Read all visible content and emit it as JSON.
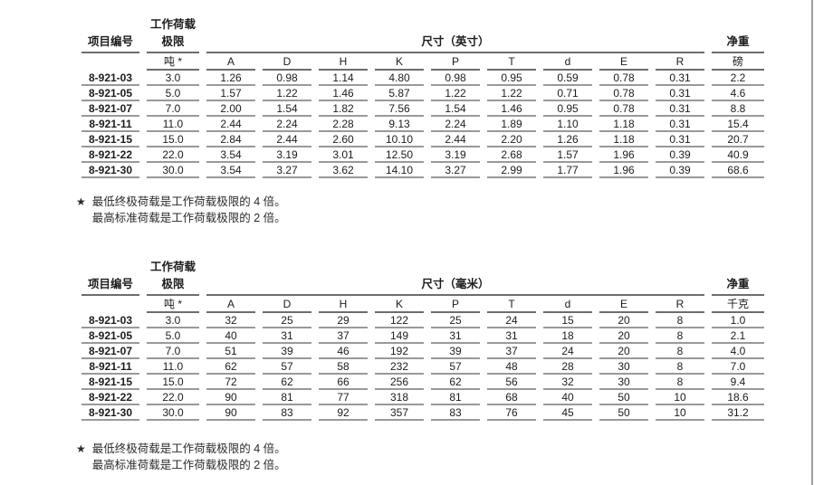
{
  "page": {
    "right_edge_color": "#a0a0a0"
  },
  "footnote": {
    "star": "★",
    "line1": "最低终极荷载是工作荷载极限的 4 倍。",
    "line2": "最高标准荷载是工作荷载极限的 2 倍。"
  },
  "tables": [
    {
      "name": "inch-pound",
      "headers": {
        "item": "项目编号",
        "wll_line1": "工作荷载",
        "wll_line2": "极限",
        "wll_unit": "吨 *",
        "dims_group": "尺寸（英寸）",
        "dim_cols": [
          "A",
          "D",
          "H",
          "K",
          "P",
          "T",
          "d",
          "E",
          "R"
        ],
        "weight_group": "净重",
        "weight_unit": "磅"
      },
      "rows": [
        {
          "item": "8-921-03",
          "wll": "3.0",
          "dims": [
            "1.26",
            "0.98",
            "1.14",
            "4.80",
            "0.98",
            "0.95",
            "0.59",
            "0.78",
            "0.31"
          ],
          "weight": "2.2"
        },
        {
          "item": "8-921-05",
          "wll": "5.0",
          "dims": [
            "1.57",
            "1.22",
            "1.46",
            "5.87",
            "1.22",
            "1.22",
            "0.71",
            "0.78",
            "0.31"
          ],
          "weight": "4.6"
        },
        {
          "item": "8-921-07",
          "wll": "7.0",
          "dims": [
            "2.00",
            "1.54",
            "1.82",
            "7.56",
            "1.54",
            "1.46",
            "0.95",
            "0.78",
            "0.31"
          ],
          "weight": "8.8"
        },
        {
          "item": "8-921-11",
          "wll": "11.0",
          "dims": [
            "2.44",
            "2.24",
            "2.28",
            "9.13",
            "2.24",
            "1.89",
            "1.10",
            "1.18",
            "0.31"
          ],
          "weight": "15.4"
        },
        {
          "item": "8-921-15",
          "wll": "15.0",
          "dims": [
            "2.84",
            "2.44",
            "2.60",
            "10.10",
            "2.44",
            "2.20",
            "1.26",
            "1.18",
            "0.31"
          ],
          "weight": "20.7"
        },
        {
          "item": "8-921-22",
          "wll": "22.0",
          "dims": [
            "3.54",
            "3.19",
            "3.01",
            "12.50",
            "3.19",
            "2.68",
            "1.57",
            "1.96",
            "0.39"
          ],
          "weight": "40.9"
        },
        {
          "item": "8-921-30",
          "wll": "30.0",
          "dims": [
            "3.54",
            "3.27",
            "3.62",
            "14.10",
            "3.27",
            "2.99",
            "1.77",
            "1.96",
            "0.39"
          ],
          "weight": "68.6"
        }
      ]
    },
    {
      "name": "millimeter-kilogram",
      "headers": {
        "item": "项目编号",
        "wll_line1": "工作荷载",
        "wll_line2": "极限",
        "wll_unit": "吨 *",
        "dims_group": "尺寸（毫米）",
        "dim_cols": [
          "A",
          "D",
          "H",
          "K",
          "P",
          "T",
          "d",
          "E",
          "R"
        ],
        "weight_group": "净重",
        "weight_unit": "千克"
      },
      "rows": [
        {
          "item": "8-921-03",
          "wll": "3.0",
          "dims": [
            "32",
            "25",
            "29",
            "122",
            "25",
            "24",
            "15",
            "20",
            "8"
          ],
          "weight": "1.0"
        },
        {
          "item": "8-921-05",
          "wll": "5.0",
          "dims": [
            "40",
            "31",
            "37",
            "149",
            "31",
            "31",
            "18",
            "20",
            "8"
          ],
          "weight": "2.1"
        },
        {
          "item": "8-921-07",
          "wll": "7.0",
          "dims": [
            "51",
            "39",
            "46",
            "192",
            "39",
            "37",
            "24",
            "20",
            "8"
          ],
          "weight": "4.0"
        },
        {
          "item": "8-921-11",
          "wll": "11.0",
          "dims": [
            "62",
            "57",
            "58",
            "232",
            "57",
            "48",
            "28",
            "30",
            "8"
          ],
          "weight": "7.0"
        },
        {
          "item": "8-921-15",
          "wll": "15.0",
          "dims": [
            "72",
            "62",
            "66",
            "256",
            "62",
            "56",
            "32",
            "30",
            "8"
          ],
          "weight": "9.4"
        },
        {
          "item": "8-921-22",
          "wll": "22.0",
          "dims": [
            "90",
            "81",
            "77",
            "318",
            "81",
            "68",
            "40",
            "50",
            "10"
          ],
          "weight": "18.6"
        },
        {
          "item": "8-921-30",
          "wll": "30.0",
          "dims": [
            "90",
            "83",
            "92",
            "357",
            "83",
            "76",
            "45",
            "50",
            "10"
          ],
          "weight": "31.2"
        }
      ]
    }
  ]
}
